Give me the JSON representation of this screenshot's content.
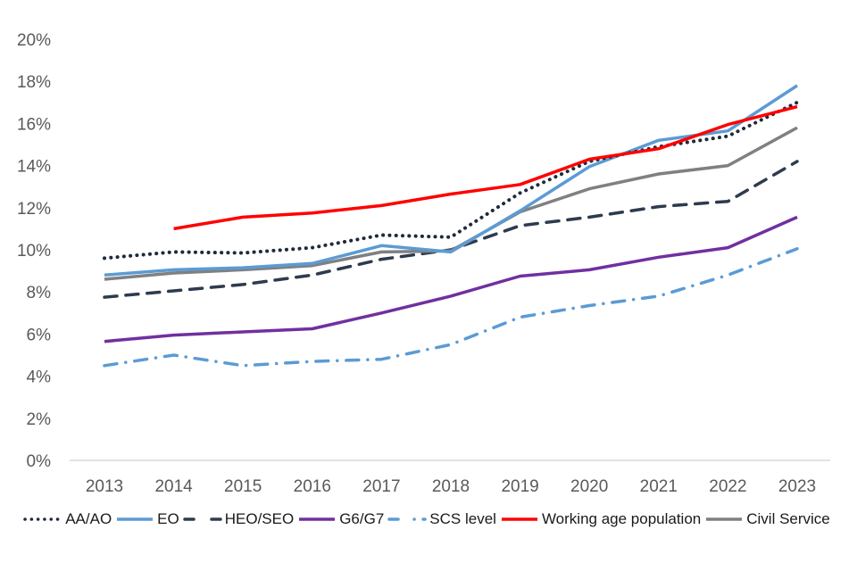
{
  "chart_data": {
    "type": "line",
    "title": "",
    "xlabel": "",
    "ylabel": "",
    "x": [
      "2013",
      "2014",
      "2015",
      "2016",
      "2017",
      "2018",
      "2019",
      "2020",
      "2021",
      "2022",
      "2023"
    ],
    "ylim": [
      0,
      20
    ],
    "yticks": [
      "0%",
      "2%",
      "4%",
      "6%",
      "8%",
      "10%",
      "12%",
      "14%",
      "16%",
      "18%",
      "20%"
    ],
    "ytick_values": [
      0,
      2,
      4,
      6,
      8,
      10,
      12,
      14,
      16,
      18,
      20
    ],
    "grid": false,
    "legend_position": "bottom",
    "series": [
      {
        "name": "AA/AO",
        "color": "#1f2a3a",
        "style": "dotted",
        "values": [
          9.6,
          9.9,
          9.85,
          10.1,
          10.7,
          10.6,
          12.7,
          14.2,
          14.9,
          15.4,
          17.0
        ]
      },
      {
        "name": "EO",
        "color": "#5b9bd5",
        "style": "solid",
        "values": [
          8.8,
          9.05,
          9.15,
          9.35,
          10.2,
          9.9,
          11.85,
          13.95,
          15.2,
          15.65,
          17.8
        ]
      },
      {
        "name": "HEO/SEO",
        "color": "#2e3b4e",
        "style": "dashed",
        "values": [
          7.75,
          8.05,
          8.35,
          8.8,
          9.55,
          10.0,
          11.15,
          11.55,
          12.05,
          12.3,
          14.2
        ]
      },
      {
        "name": "G6/G7",
        "color": "#7030a0",
        "style": "solid",
        "values": [
          5.65,
          5.95,
          6.1,
          6.25,
          7.0,
          7.8,
          8.75,
          9.05,
          9.65,
          10.1,
          11.55
        ]
      },
      {
        "name": "SCS level",
        "color": "#5b9bd5",
        "style": "dashdot",
        "values": [
          4.5,
          5.0,
          4.5,
          4.7,
          4.8,
          5.5,
          6.8,
          7.35,
          7.8,
          8.8,
          10.05
        ]
      },
      {
        "name": "Working age population",
        "color": "#ff0000",
        "style": "solid",
        "values": [
          null,
          11.0,
          11.55,
          11.75,
          12.1,
          12.65,
          13.1,
          14.3,
          14.8,
          15.95,
          16.8
        ]
      },
      {
        "name": "Civil Service",
        "color": "#808080",
        "style": "solid",
        "values": [
          8.6,
          8.9,
          9.05,
          9.25,
          9.9,
          9.95,
          11.8,
          12.9,
          13.6,
          14.0,
          15.8
        ]
      }
    ]
  }
}
